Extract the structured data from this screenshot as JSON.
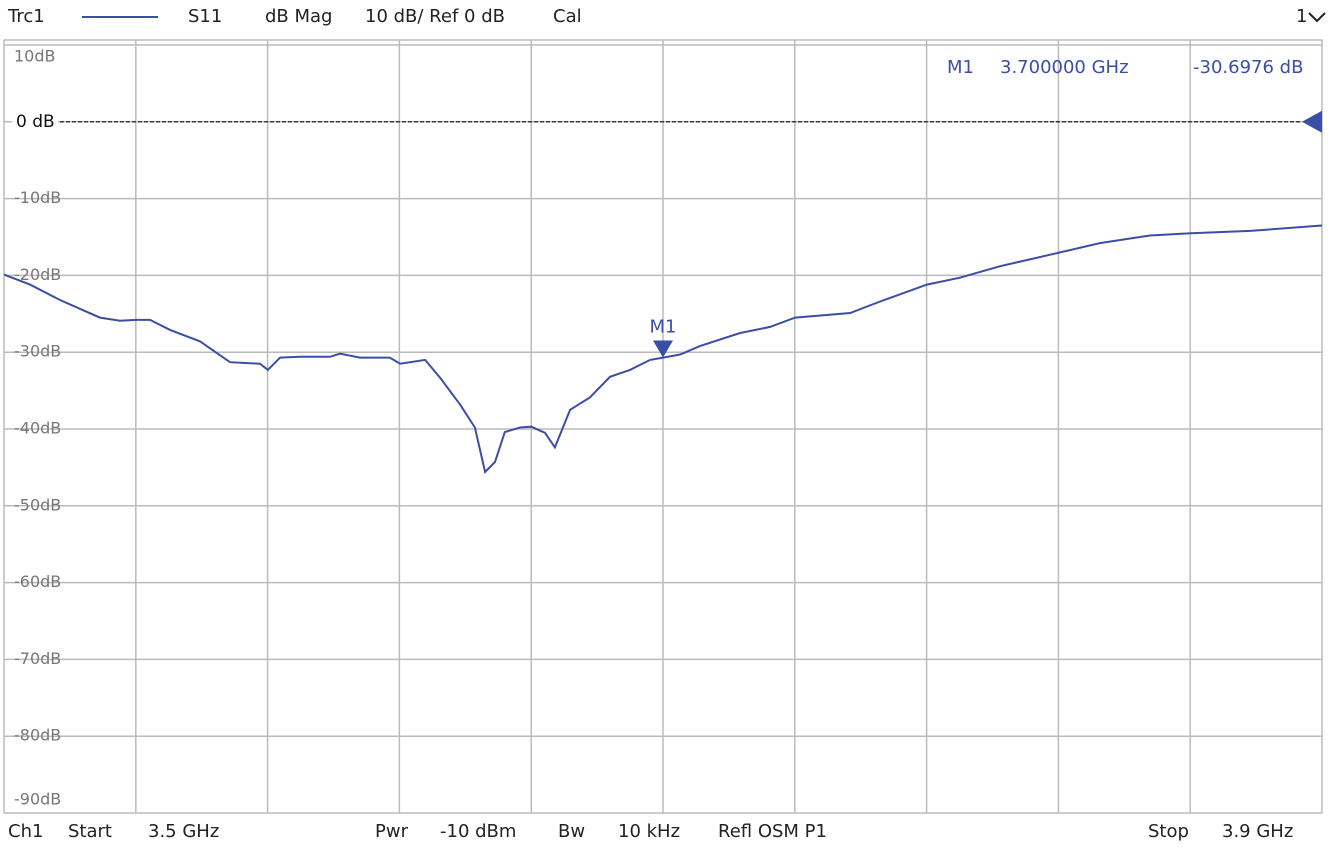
{
  "chart_data": {
    "type": "line",
    "header": {
      "trace": "Trc1",
      "param": "S11",
      "format": "dB Mag",
      "scale": "10 dB/ Ref 0 dB",
      "cal": "Cal",
      "window": "1"
    },
    "footer": {
      "channel": "Ch1",
      "start": "Start",
      "start_value": "3.5 GHz",
      "pwr": "Pwr",
      "pwr_value": "-10 dBm",
      "bw": "Bw",
      "bw_value": "10 kHz",
      "cal_type": "Refl OSM P1",
      "stop": "Stop",
      "stop_value": "3.9 GHz"
    },
    "xlim": [
      3.5,
      3.9
    ],
    "ylim": [
      -90,
      10
    ],
    "yticks": [
      {
        "value": 10,
        "label": "10dB"
      },
      {
        "value": 0,
        "label": "0 dB"
      },
      {
        "value": -10,
        "label": "-10dB"
      },
      {
        "value": -20,
        "label": "-20dB"
      },
      {
        "value": -30,
        "label": "-30dB"
      },
      {
        "value": -40,
        "label": "-40dB"
      },
      {
        "value": -50,
        "label": "-50dB"
      },
      {
        "value": -60,
        "label": "-60dB"
      },
      {
        "value": -70,
        "label": "-70dB"
      },
      {
        "value": -80,
        "label": "-80dB"
      },
      {
        "value": -90,
        "label": "-90dB"
      }
    ],
    "grid": true,
    "ref_level": 0,
    "series": [
      {
        "name": "Trc1",
        "color": "#3b4ea6",
        "x": [
          3.5,
          3.5079,
          3.517,
          3.5291,
          3.5352,
          3.5401,
          3.5443,
          3.5504,
          3.5595,
          3.5686,
          3.5777,
          3.5801,
          3.5838,
          3.5898,
          3.5989,
          3.602,
          3.608,
          3.6171,
          3.6202,
          3.6278,
          3.6323,
          3.6384,
          3.6429,
          3.646,
          3.649,
          3.652,
          3.6566,
          3.66,
          3.6642,
          3.6672,
          3.6718,
          3.6778,
          3.6839,
          3.69,
          3.6961,
          3.7,
          3.7052,
          3.7112,
          3.7234,
          3.7325,
          3.7401,
          3.7568,
          3.7659,
          3.7801,
          3.7901,
          3.8023,
          3.8175,
          3.8326,
          3.8478,
          3.8602,
          3.8782,
          3.9
        ],
        "values": [
          -19.9,
          -21.2,
          -23.2,
          -25.5,
          -25.9,
          -25.8,
          -25.8,
          -27.1,
          -28.6,
          -31.3,
          -31.5,
          -32.3,
          -30.7,
          -30.6,
          -30.6,
          -30.2,
          -30.7,
          -30.7,
          -31.5,
          -31.0,
          -33.3,
          -36.8,
          -39.8,
          -45.6,
          -44.3,
          -40.4,
          -39.8,
          -39.7,
          -40.5,
          -42.4,
          -37.5,
          -35.9,
          -33.2,
          -32.3,
          -31.0,
          -30.7,
          -30.3,
          -29.2,
          -27.5,
          -26.7,
          -25.5,
          -24.9,
          -23.4,
          -21.2,
          -20.3,
          -18.8,
          -17.3,
          -15.8,
          -14.8,
          -14.5,
          -14.2,
          -13.5
        ]
      }
    ],
    "markers": [
      {
        "name": "M1",
        "x": 3.7,
        "y": -30.6976,
        "x_label": "3.700000 GHz",
        "y_label": "-30.6976 dB"
      }
    ]
  }
}
